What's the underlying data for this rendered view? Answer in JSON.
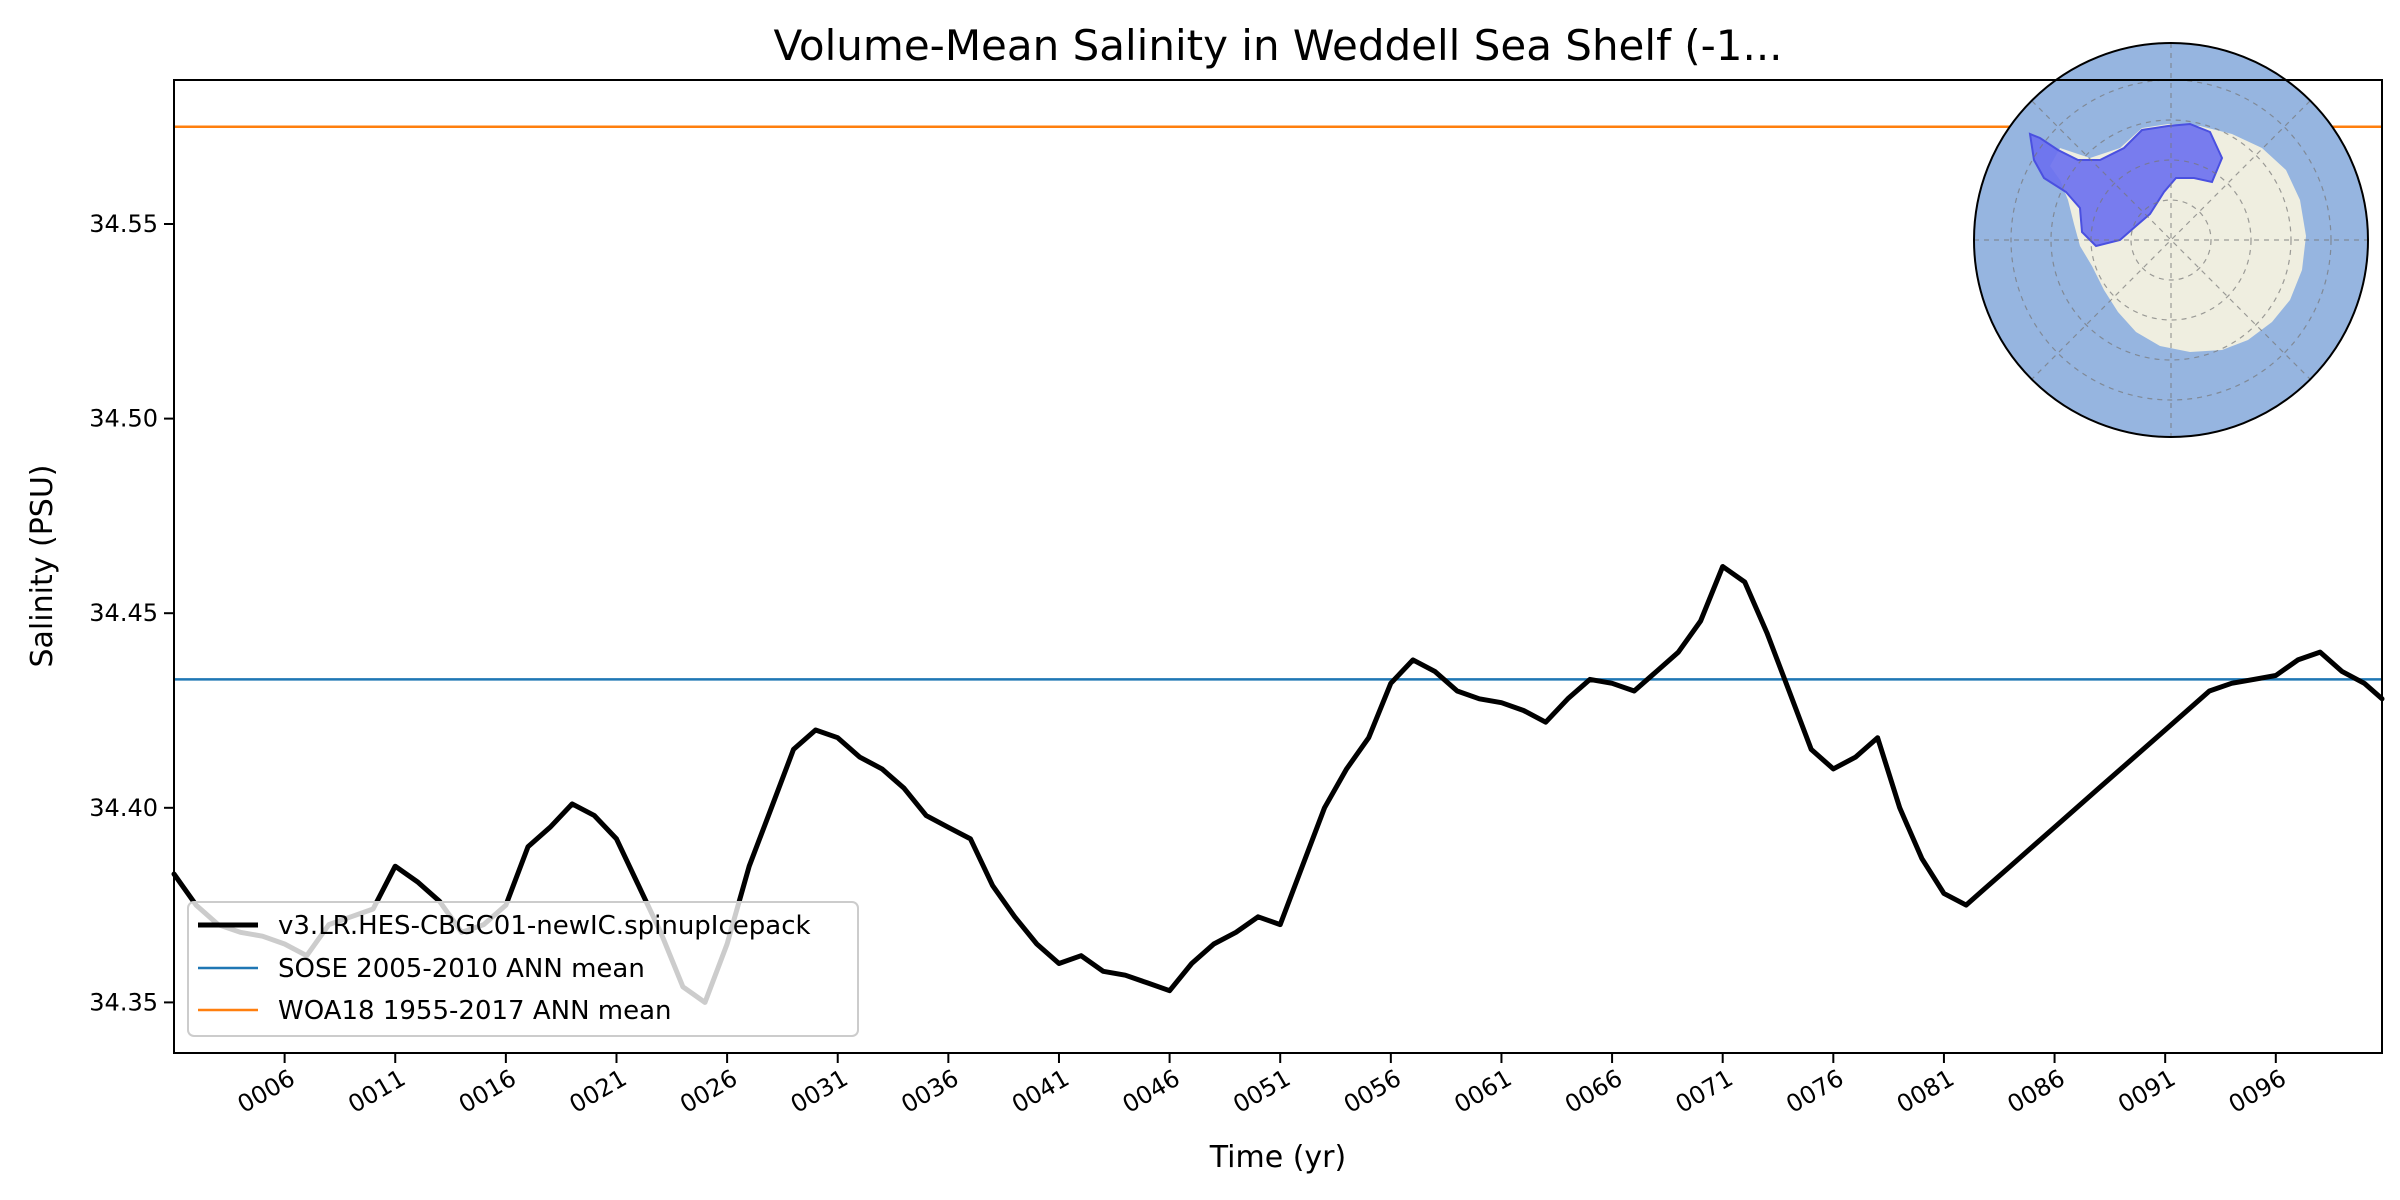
{
  "chart_data": {
    "type": "line",
    "title": "Volume-Mean Salinity in Weddell Sea Shelf (-1...",
    "xlabel": "Time (yr)",
    "ylabel": "Salinity (PSU)",
    "xlim": [
      1,
      100.8
    ],
    "ylim": [
      34.337,
      34.587
    ],
    "x_ticks": [
      6,
      11,
      16,
      21,
      26,
      31,
      36,
      41,
      46,
      51,
      56,
      61,
      66,
      71,
      76,
      81,
      86,
      91,
      96
    ],
    "x_tick_labels": [
      "0006",
      "0011",
      "0016",
      "0021",
      "0026",
      "0031",
      "0036",
      "0041",
      "0046",
      "0051",
      "0056",
      "0061",
      "0066",
      "0071",
      "0076",
      "0081",
      "0086",
      "0091",
      "0096"
    ],
    "y_ticks": [
      34.35,
      34.4,
      34.45,
      34.5,
      34.55
    ],
    "y_tick_labels": [
      "34.35",
      "34.40",
      "34.45",
      "34.50",
      "34.55"
    ],
    "grid": false,
    "legend_position": "lower-left",
    "series": [
      {
        "name": "v3.LR.HES-CBGC01-newIC.spinupIcepack",
        "color": "#000000",
        "x": [
          1,
          2,
          3,
          4,
          5,
          6,
          7,
          8,
          9,
          10,
          11,
          12,
          13,
          14,
          15,
          16,
          17,
          18,
          19,
          20,
          21,
          22,
          23,
          24,
          25,
          26,
          27,
          28,
          29,
          30,
          31,
          32,
          33,
          34,
          35,
          36,
          37,
          38,
          39,
          40,
          41,
          42,
          43,
          44,
          45,
          46,
          47,
          48,
          49,
          50,
          51,
          52,
          53,
          54,
          55,
          56,
          57,
          58,
          59,
          60,
          61,
          62,
          63,
          64,
          65,
          66,
          67,
          68,
          69,
          70,
          71,
          72,
          73,
          74,
          75,
          76,
          77,
          78,
          79,
          80,
          81,
          82,
          83,
          84,
          85,
          86,
          87,
          88,
          89,
          90,
          91,
          92,
          93,
          94,
          95,
          96,
          97,
          98,
          99,
          100,
          100.8
        ],
        "y": [
          34.383,
          34.375,
          34.37,
          34.368,
          34.367,
          34.365,
          34.362,
          34.37,
          34.372,
          34.374,
          34.385,
          34.381,
          34.376,
          34.368,
          34.37,
          34.375,
          34.39,
          34.395,
          34.401,
          34.398,
          34.392,
          34.38,
          34.368,
          34.354,
          34.35,
          34.365,
          34.385,
          34.4,
          34.415,
          34.42,
          34.418,
          34.413,
          34.41,
          34.405,
          34.398,
          34.395,
          34.392,
          34.38,
          34.372,
          34.365,
          34.36,
          34.362,
          34.358,
          34.357,
          34.355,
          34.353,
          34.36,
          34.365,
          34.368,
          34.372,
          34.37,
          34.385,
          34.4,
          34.41,
          34.418,
          34.432,
          34.438,
          34.435,
          34.43,
          34.428,
          34.427,
          34.425,
          34.422,
          34.428,
          34.433,
          34.432,
          34.43,
          34.435,
          34.44,
          34.448,
          34.462,
          34.458,
          34.445,
          34.43,
          34.415,
          34.41,
          34.413,
          34.418,
          34.4,
          34.387,
          34.378,
          34.375,
          34.38,
          34.385,
          34.39,
          34.395,
          34.4,
          34.405,
          34.41,
          34.415,
          34.42,
          34.425,
          34.43,
          34.432,
          34.433,
          34.434,
          34.438,
          34.44,
          34.435,
          34.432,
          34.428
        ]
      },
      {
        "name": "SOSE 2005-2010 ANN mean",
        "color": "#1f77b4",
        "value": 34.433
      },
      {
        "name": "WOA18 1955-2017 ANN mean",
        "color": "#ff7f0e",
        "value": 34.575
      }
    ],
    "inset": {
      "type": "polar-map",
      "ocean_color": "#96b5e0",
      "land_color": "#efeee0",
      "region_color": "#6a6ff0"
    }
  }
}
